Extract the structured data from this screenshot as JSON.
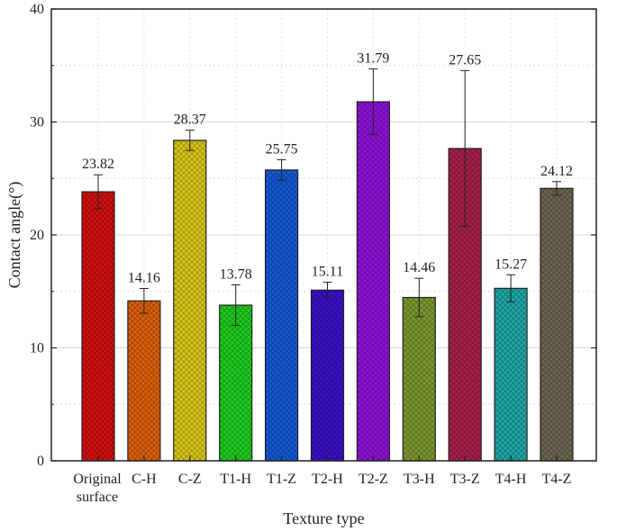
{
  "chart_data": {
    "type": "bar",
    "title": "",
    "xlabel": "Texture type",
    "ylabel": "Contact angle(°)",
    "ylim": [
      0,
      40
    ],
    "yticks": [
      0,
      10,
      20,
      30,
      40
    ],
    "grid": "horizontal and vertical, light gray",
    "categories": [
      [
        "Original",
        "surface"
      ],
      [
        "C-H"
      ],
      [
        "C-Z"
      ],
      [
        "T1-H"
      ],
      [
        "T1-Z"
      ],
      [
        "T2-H"
      ],
      [
        "T2-Z"
      ],
      [
        "T3-H"
      ],
      [
        "T3-Z"
      ],
      [
        "T4-H"
      ],
      [
        "T4-Z"
      ]
    ],
    "values": [
      23.82,
      14.16,
      28.37,
      13.78,
      25.75,
      15.11,
      31.79,
      14.46,
      27.65,
      15.27,
      24.12
    ],
    "value_labels": [
      "23.82",
      "14.16",
      "28.37",
      "13.78",
      "25.75",
      "15.11",
      "31.79",
      "14.46",
      "27.65",
      "15.27",
      "24.12"
    ],
    "error": [
      1.5,
      1.1,
      0.9,
      1.8,
      0.9,
      0.7,
      2.9,
      1.7,
      6.9,
      1.2,
      0.6
    ],
    "colors": [
      "#d41010",
      "#e0600a",
      "#d9c81a",
      "#1fce1f",
      "#1559d6",
      "#3a10c8",
      "#8f12d8",
      "#7d9a2e",
      "#a8204a",
      "#20a8a8",
      "#6e6650"
    ],
    "pattern": "crosshatch"
  }
}
